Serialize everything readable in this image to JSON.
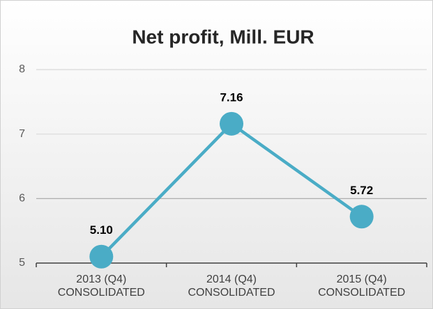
{
  "chart_data": {
    "type": "line",
    "title": "Net profit, Mill. EUR",
    "categories": [
      "2013 (Q4) CONSOLIDATED",
      "2014 (Q4) CONSOLIDATED",
      "2015 (Q4) CONSOLIDATED"
    ],
    "values": [
      5.1,
      7.16,
      5.72
    ],
    "value_labels": [
      "5.10",
      "7.16",
      "5.72"
    ],
    "color": "#4aacc6",
    "ylim": [
      5,
      8
    ],
    "yticks": [
      5,
      6,
      7,
      8
    ],
    "grid": true
  }
}
